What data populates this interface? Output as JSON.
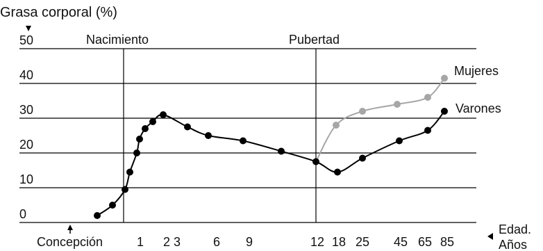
{
  "chart_data": {
    "type": "line",
    "ylabel": "Grasa corporal (%)",
    "y_ticks": [
      "0",
      "10",
      "20",
      "30",
      "40",
      "50"
    ],
    "ylim": [
      0,
      50
    ],
    "grid": true,
    "x_labels": [
      "Concepción",
      "1",
      "2 3",
      "6",
      "9",
      "12",
      "18",
      "25",
      "45",
      "65",
      "85"
    ],
    "x_axis_label_line1": "Edad.",
    "x_axis_label_line2": "Años",
    "markers": [
      {
        "label": "Nacimiento"
      },
      {
        "label": "Pubertad"
      }
    ],
    "series": [
      {
        "name": "Varones",
        "color": "#000000",
        "points": [
          [
            140,
            2
          ],
          [
            162,
            5
          ],
          [
            180,
            9.5
          ],
          [
            187,
            14.5
          ],
          [
            197,
            20
          ],
          [
            201,
            24
          ],
          [
            209,
            27
          ],
          [
            220,
            29
          ],
          [
            235,
            31
          ],
          [
            270,
            27.5
          ],
          [
            300,
            25
          ],
          [
            350,
            23.5
          ],
          [
            405,
            20.5
          ],
          [
            455,
            17.5
          ],
          [
            486,
            14.5
          ],
          [
            522,
            18.5
          ],
          [
            575,
            23.5
          ],
          [
            616,
            26.5
          ],
          [
            640,
            32
          ]
        ]
      },
      {
        "name": "Mujeres",
        "color": "#a6a6a6",
        "points": [
          [
            455,
            17.5
          ],
          [
            484,
            28
          ],
          [
            522,
            32
          ],
          [
            572,
            34
          ],
          [
            616,
            36
          ],
          [
            640,
            41.5
          ]
        ]
      }
    ]
  }
}
